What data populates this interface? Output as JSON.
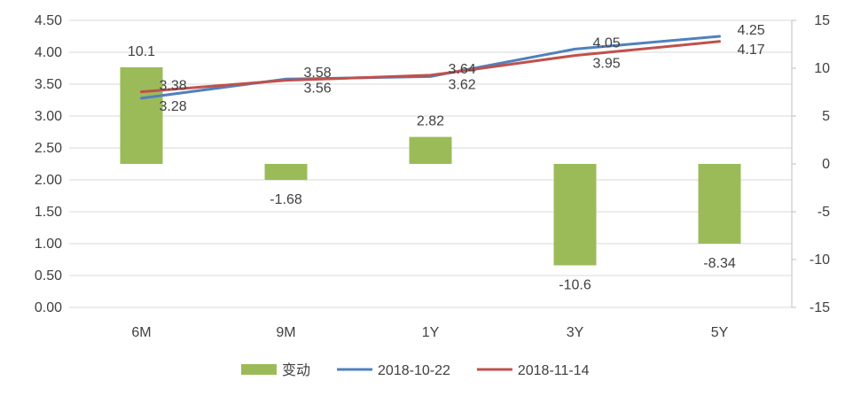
{
  "chart_data": {
    "type": "bar",
    "title": "",
    "categories": [
      "6M",
      "9M",
      "1Y",
      "3Y",
      "5Y"
    ],
    "left_axis": {
      "ylim": [
        0,
        4.5
      ],
      "ticks": [
        0,
        0.5,
        1,
        1.5,
        2,
        2.5,
        3,
        3.5,
        4,
        4.5
      ],
      "tick_labels": [
        "0.00",
        "0.50",
        "1.00",
        "1.50",
        "2.00",
        "2.50",
        "3.00",
        "3.50",
        "4.00",
        "4.50"
      ]
    },
    "right_axis": {
      "ylim": [
        -15,
        15
      ],
      "ticks": [
        -15,
        -10,
        -5,
        0,
        5,
        10,
        15
      ],
      "tick_labels": [
        "-15",
        "-10",
        "-5",
        "0",
        "5",
        "10",
        "15"
      ]
    },
    "series": [
      {
        "name": "变动",
        "kind": "bar",
        "axis": "right",
        "color": "#9BBB59",
        "values": [
          10.1,
          -1.68,
          2.82,
          -10.6,
          -8.34
        ],
        "labels": [
          "10.1",
          "-1.68",
          "2.82",
          "-10.6",
          "-8.34"
        ]
      },
      {
        "name": "2018-10-22",
        "kind": "line",
        "axis": "left",
        "color": "#4F81BD",
        "values": [
          3.28,
          3.58,
          3.62,
          4.05,
          4.25
        ],
        "labels": [
          "3.28",
          "3.58",
          "3.62",
          "4.05",
          "4.25"
        ]
      },
      {
        "name": "2018-11-14",
        "kind": "line",
        "axis": "left",
        "color": "#C0504D",
        "values": [
          3.38,
          3.56,
          3.64,
          3.95,
          4.17
        ],
        "labels": [
          "3.38",
          "3.56",
          "3.64",
          "3.95",
          "4.17"
        ]
      }
    ],
    "grid": true,
    "legend": "bottom"
  }
}
